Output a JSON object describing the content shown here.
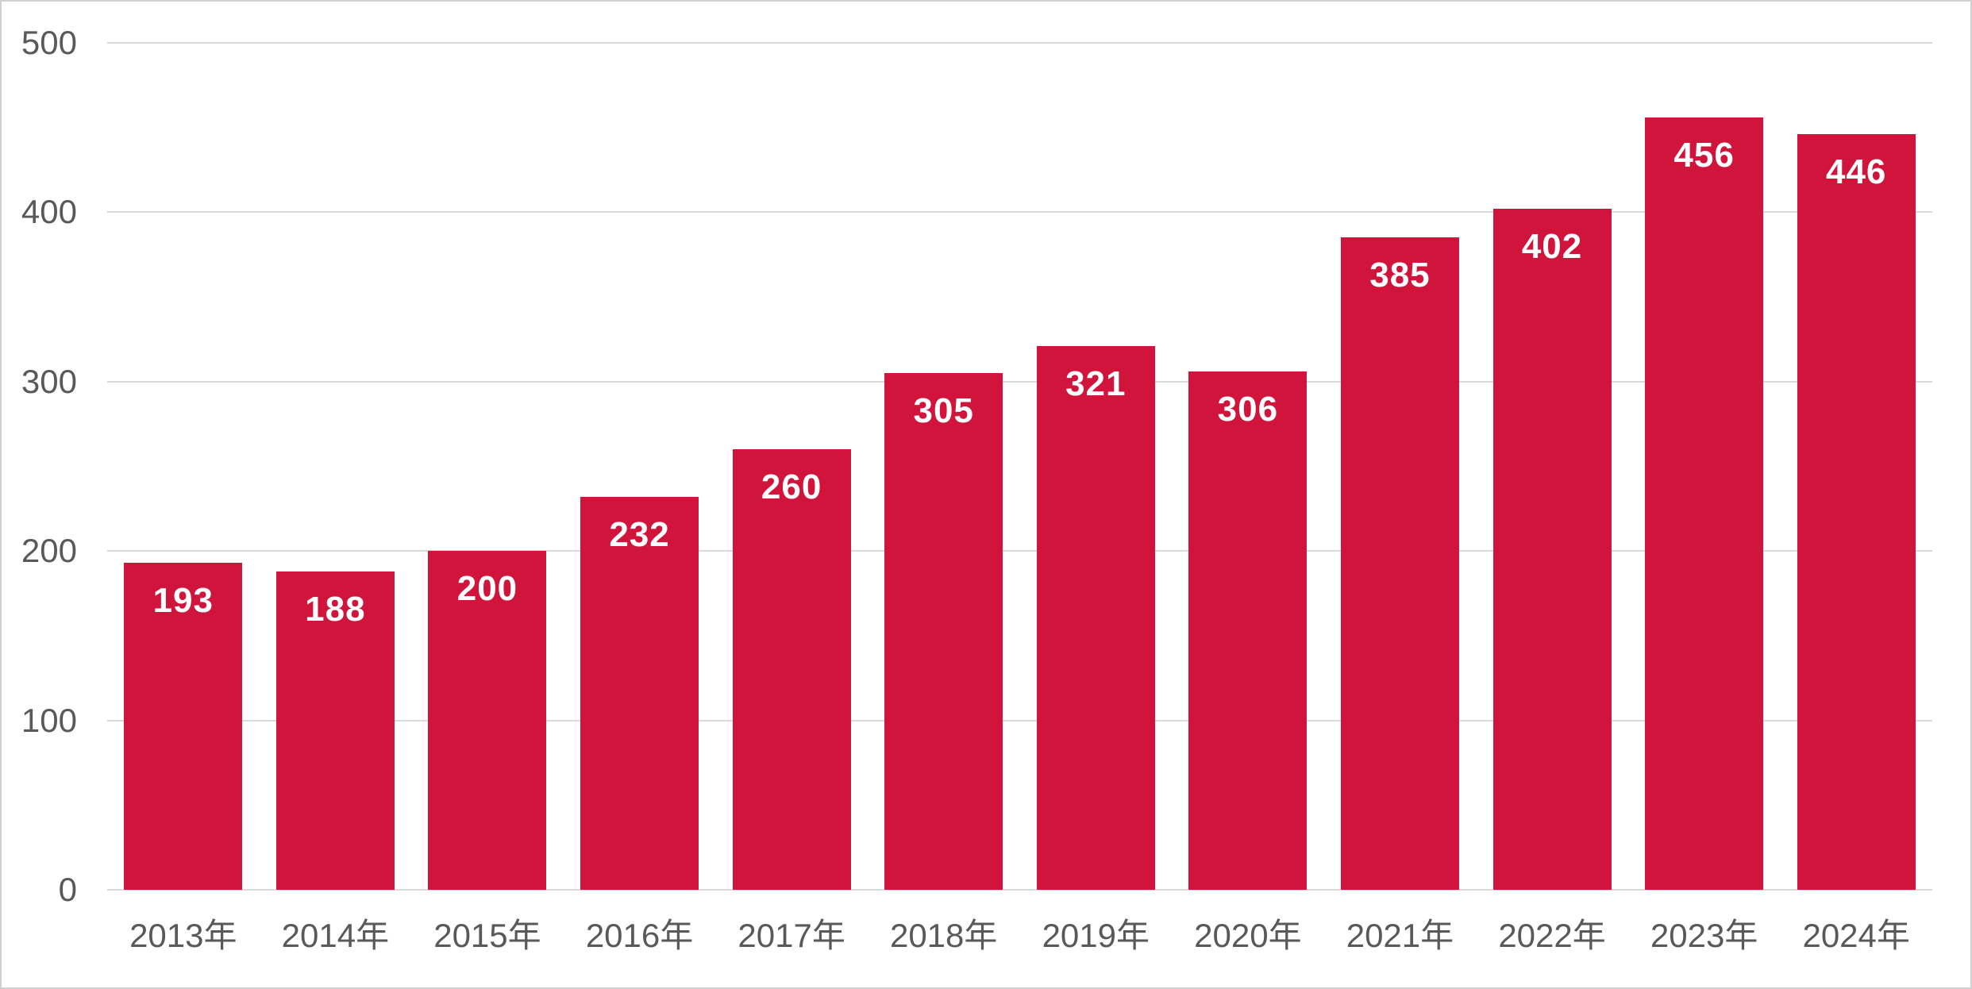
{
  "chart_data": {
    "type": "bar",
    "title": "",
    "xlabel": "",
    "ylabel": "",
    "categories": [
      "2013年",
      "2014年",
      "2015年",
      "2016年",
      "2017年",
      "2018年",
      "2019年",
      "2020年",
      "2021年",
      "2022年",
      "2023年",
      "2024年"
    ],
    "values": [
      193,
      188,
      200,
      232,
      260,
      305,
      321,
      306,
      385,
      402,
      456,
      446
    ],
    "data_labels": [
      193,
      188,
      200,
      232,
      260,
      305,
      321,
      306,
      385,
      402,
      456,
      446
    ],
    "data_label_position": "inside-end",
    "ylim": [
      0,
      500
    ],
    "yticks": [
      0,
      100,
      200,
      300,
      400,
      500
    ],
    "grid": true,
    "legend": false,
    "colors": {
      "bar": "#d0143c",
      "bar_label_text": "#ffffff",
      "tick_label_text": "#595959",
      "gridline": "#d9d9d9",
      "axis_line": "#d9d9d9",
      "background": "#ffffff",
      "frame_border": "#d0d0d0"
    }
  }
}
